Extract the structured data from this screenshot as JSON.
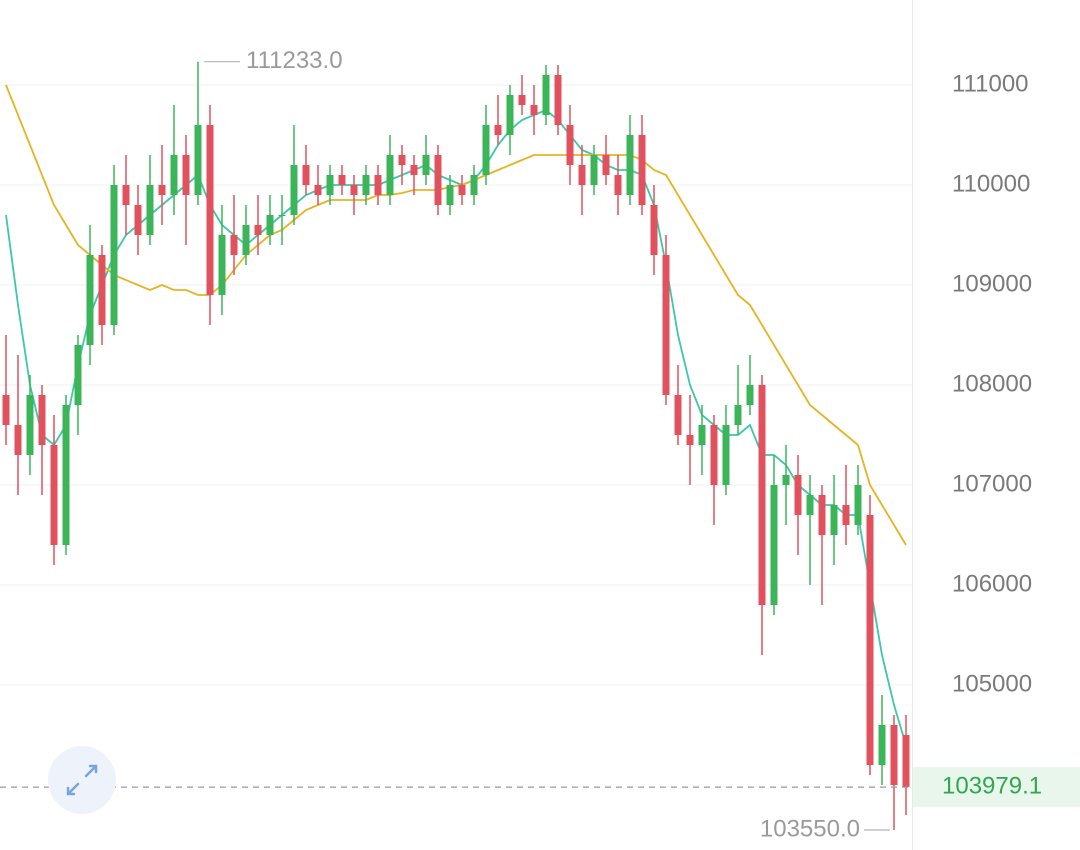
{
  "chart_data": {
    "type": "candlestick",
    "ylim": [
      103350,
      111850
    ],
    "yticks": [
      105000,
      106000,
      107000,
      108000,
      109000,
      110000,
      111000
    ],
    "grid": true,
    "up_color": "#3cb55a",
    "down_color": "#e0525d",
    "ohlc": [
      [
        107900,
        108500,
        107400,
        107600
      ],
      [
        107600,
        108300,
        106900,
        107300
      ],
      [
        107300,
        108100,
        107100,
        107900
      ],
      [
        107900,
        108000,
        106900,
        107400
      ],
      [
        107400,
        107700,
        106200,
        106400
      ],
      [
        106400,
        107900,
        106300,
        107800
      ],
      [
        107800,
        108500,
        107500,
        108400
      ],
      [
        108400,
        109600,
        108200,
        109300
      ],
      [
        109300,
        109400,
        108400,
        108600
      ],
      [
        108600,
        110200,
        108500,
        110000
      ],
      [
        110000,
        110300,
        109500,
        109800
      ],
      [
        109800,
        110000,
        109300,
        109500
      ],
      [
        109500,
        110300,
        109400,
        110000
      ],
      [
        110000,
        110400,
        109600,
        109900
      ],
      [
        109900,
        110800,
        109700,
        110300
      ],
      [
        110300,
        110500,
        109400,
        109900
      ],
      [
        109900,
        111233,
        109800,
        110600
      ],
      [
        110600,
        110800,
        108600,
        108900
      ],
      [
        108900,
        109800,
        108700,
        109500
      ],
      [
        109500,
        109900,
        109100,
        109300
      ],
      [
        109300,
        109800,
        109200,
        109600
      ],
      [
        109600,
        109900,
        109300,
        109500
      ],
      [
        109500,
        109900,
        109400,
        109700
      ],
      [
        109700,
        109900,
        109400,
        109700
      ],
      [
        109700,
        110600,
        109600,
        110200
      ],
      [
        110200,
        110400,
        109900,
        110000
      ],
      [
        110000,
        110200,
        109800,
        109900
      ],
      [
        109900,
        110200,
        109800,
        110100
      ],
      [
        110100,
        110200,
        109900,
        110000
      ],
      [
        110000,
        110100,
        109700,
        109900
      ],
      [
        109900,
        110200,
        109800,
        110100
      ],
      [
        110100,
        110200,
        109800,
        109900
      ],
      [
        109900,
        110500,
        109800,
        110300
      ],
      [
        110300,
        110400,
        110000,
        110200
      ],
      [
        110200,
        110300,
        109900,
        110100
      ],
      [
        110100,
        110500,
        110000,
        110300
      ],
      [
        110300,
        110400,
        109700,
        109800
      ],
      [
        109800,
        110100,
        109700,
        110000
      ],
      [
        110000,
        110100,
        109800,
        109900
      ],
      [
        109900,
        110200,
        109800,
        110100
      ],
      [
        110100,
        110800,
        110000,
        110600
      ],
      [
        110600,
        110900,
        110400,
        110500
      ],
      [
        110500,
        111000,
        110300,
        110900
      ],
      [
        110900,
        111100,
        110700,
        110800
      ],
      [
        110800,
        111000,
        110500,
        110700
      ],
      [
        110700,
        111200,
        110600,
        111100
      ],
      [
        111100,
        111200,
        110500,
        110600
      ],
      [
        110600,
        110800,
        110000,
        110200
      ],
      [
        110200,
        110400,
        109700,
        110000
      ],
      [
        110000,
        110400,
        109900,
        110300
      ],
      [
        110300,
        110500,
        110000,
        110100
      ],
      [
        110100,
        110300,
        109700,
        109900
      ],
      [
        109900,
        110700,
        109800,
        110500
      ],
      [
        110500,
        110700,
        109700,
        109800
      ],
      [
        109800,
        110000,
        109100,
        109300
      ],
      [
        109300,
        109500,
        107800,
        107900
      ],
      [
        107900,
        108200,
        107400,
        107500
      ],
      [
        107500,
        107900,
        107000,
        107400
      ],
      [
        107400,
        107800,
        107100,
        107600
      ],
      [
        107600,
        107700,
        106600,
        107000
      ],
      [
        107000,
        107800,
        106900,
        107600
      ],
      [
        107600,
        108200,
        107500,
        107800
      ],
      [
        107800,
        108300,
        107700,
        108000
      ],
      [
        108000,
        108100,
        105300,
        105800
      ],
      [
        105800,
        107300,
        105700,
        107000
      ],
      [
        107000,
        107400,
        106600,
        107100
      ],
      [
        107100,
        107300,
        106300,
        106700
      ],
      [
        106700,
        107100,
        106000,
        106900
      ],
      [
        106900,
        107000,
        105800,
        106500
      ],
      [
        106500,
        107100,
        106200,
        106800
      ],
      [
        106800,
        107200,
        106400,
        106600
      ],
      [
        106600,
        107200,
        106500,
        107000
      ],
      [
        106700,
        106900,
        104100,
        104200
      ],
      [
        104200,
        104900,
        104000,
        104600
      ],
      [
        104600,
        104700,
        103550,
        104000
      ],
      [
        104500,
        104700,
        103700,
        103979.1
      ]
    ],
    "ma_lines": [
      {
        "color": "#3cc8a8",
        "values": [
          109700,
          108800,
          108000,
          107500,
          107400,
          107600,
          108200,
          108700,
          109000,
          109300,
          109500,
          109600,
          109700,
          109800,
          109900,
          110000,
          110100,
          109800,
          109600,
          109500,
          109400,
          109500,
          109600,
          109700,
          109800,
          109900,
          109950,
          110000,
          110000,
          110000,
          110000,
          110000,
          110050,
          110100,
          110150,
          110200,
          110100,
          110050,
          110000,
          110050,
          110200,
          110400,
          110550,
          110650,
          110700,
          110750,
          110650,
          110500,
          110350,
          110300,
          110200,
          110150,
          110150,
          110100,
          109800,
          109200,
          108500,
          108000,
          107700,
          107600,
          107500,
          107500,
          107600,
          107300,
          107300,
          107200,
          107000,
          106900,
          106800,
          106800,
          106700,
          106700,
          106000,
          105300,
          104800,
          104400
        ]
      },
      {
        "color": "#e6b422",
        "values": [
          111000,
          110700,
          110400,
          110100,
          109800,
          109600,
          109400,
          109300,
          109200,
          109100,
          109050,
          109000,
          108950,
          109000,
          108950,
          108950,
          108900,
          108900,
          109000,
          109150,
          109300,
          109400,
          109500,
          109550,
          109650,
          109750,
          109800,
          109850,
          109850,
          109850,
          109850,
          109900,
          109900,
          109920,
          109950,
          109950,
          109950,
          109980,
          110000,
          110050,
          110100,
          110150,
          110200,
          110250,
          110300,
          110300,
          110300,
          110300,
          110300,
          110300,
          110300,
          110300,
          110300,
          110250,
          110150,
          110100,
          109900,
          109700,
          109500,
          109300,
          109100,
          108900,
          108800,
          108600,
          108400,
          108200,
          108000,
          107800,
          107700,
          107600,
          107500,
          107400,
          107000,
          106800,
          106600,
          106400
        ]
      }
    ],
    "high_marker": {
      "value": 111233,
      "label": "111233.0"
    },
    "low_marker": {
      "value": 103550,
      "label": "103550.0"
    },
    "last_price": {
      "value": 103979.1,
      "label": "103979.1"
    }
  }
}
